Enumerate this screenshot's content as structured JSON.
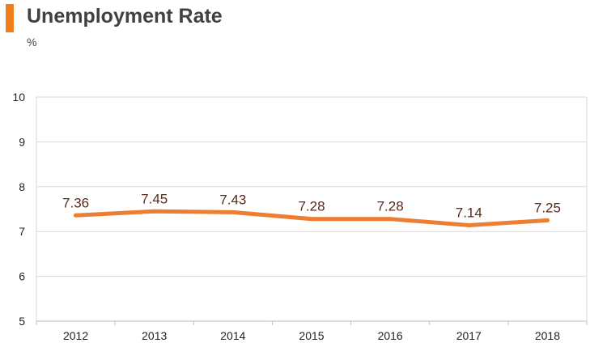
{
  "header": {
    "title": "Unemployment Rate",
    "unit": "%"
  },
  "colors": {
    "accent": "#f07f1b",
    "line": "#ed7d31",
    "grid": "#d9d9d9",
    "data_label": "#5a2a1a"
  },
  "chart_data": {
    "type": "line",
    "title": "Unemployment Rate",
    "ylabel": "%",
    "xlabel": "",
    "categories": [
      "2012",
      "2013",
      "2014",
      "2015",
      "2016",
      "2017",
      "2018"
    ],
    "series": [
      {
        "values": [
          7.36,
          7.45,
          7.43,
          7.28,
          7.28,
          7.14,
          7.25
        ],
        "labels": [
          "7.36",
          "7.45",
          "7.43",
          "7.28",
          "7.28",
          "7.14",
          "7.25"
        ]
      }
    ],
    "ylim": [
      5,
      10
    ],
    "yticks": [
      "5",
      "6",
      "7",
      "8",
      "9",
      "10"
    ],
    "grid": true,
    "legend": "none"
  }
}
